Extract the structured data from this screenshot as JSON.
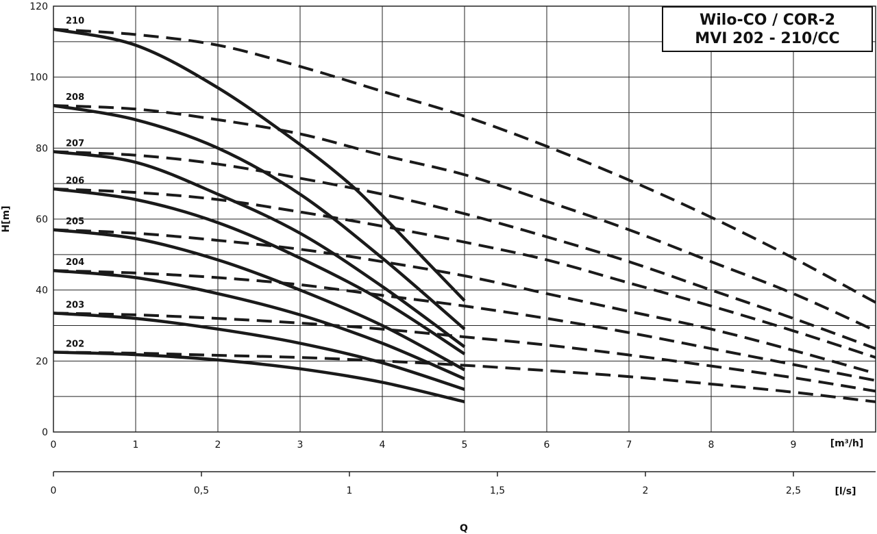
{
  "chart_data": {
    "type": "line",
    "title": [
      "Wilo-CO / COR-2",
      "MVI 202 - 210/CC"
    ],
    "xlabel": "Q",
    "ylabel": "H[m]",
    "x_unit": "[m³/h]",
    "x2_unit": "[l/s]",
    "xlim": [
      0,
      10
    ],
    "ylim": [
      0,
      120
    ],
    "x_ticks": [
      0,
      1,
      2,
      3,
      4,
      5,
      6,
      7,
      8,
      9
    ],
    "x_tick_labels": [
      "0",
      "1",
      "2",
      "3",
      "4",
      "5",
      "6",
      "7",
      "8",
      "9"
    ],
    "y_ticks": [
      0,
      20,
      40,
      60,
      80,
      100,
      120
    ],
    "y_tick_labels": [
      "0",
      "20",
      "40",
      "60",
      "80",
      "100",
      "120"
    ],
    "y_minor_grid": [
      10,
      30,
      50,
      70,
      90,
      110
    ],
    "x2_ticks": [
      0,
      0.5,
      1,
      1.5,
      2,
      2.5
    ],
    "x2_tick_labels": [
      "0",
      "0,5",
      "1",
      "1,5",
      "2",
      "2,5"
    ],
    "grid": true,
    "series_style": {
      "single_pump": "solid",
      "two_pumps": "dashed"
    },
    "series": [
      {
        "name": "210",
        "single_pump": [
          [
            0,
            113.5
          ],
          [
            1,
            109
          ],
          [
            2,
            97
          ],
          [
            3,
            81
          ],
          [
            3.6,
            70
          ],
          [
            4,
            61
          ],
          [
            4.5,
            49
          ],
          [
            5,
            37
          ]
        ],
        "two_pumps": [
          [
            0,
            113.5
          ],
          [
            1,
            112
          ],
          [
            2,
            109
          ],
          [
            3,
            103
          ],
          [
            4,
            96
          ],
          [
            5,
            89
          ],
          [
            6,
            80.5
          ],
          [
            7,
            71
          ],
          [
            8,
            60.5
          ],
          [
            9,
            49
          ],
          [
            10,
            36.5
          ]
        ]
      },
      {
        "name": "208",
        "single_pump": [
          [
            0,
            92
          ],
          [
            1,
            88
          ],
          [
            2,
            80
          ],
          [
            3,
            67
          ],
          [
            4,
            49
          ],
          [
            5,
            29
          ]
        ],
        "two_pumps": [
          [
            0,
            92
          ],
          [
            1,
            91
          ],
          [
            2,
            88
          ],
          [
            3,
            84
          ],
          [
            4,
            78
          ],
          [
            5,
            72.5
          ],
          [
            6,
            65
          ],
          [
            7,
            57
          ],
          [
            8,
            48
          ],
          [
            9,
            39
          ],
          [
            10,
            28.5
          ]
        ]
      },
      {
        "name": "207",
        "single_pump": [
          [
            0,
            79
          ],
          [
            1,
            76
          ],
          [
            2,
            67
          ],
          [
            3,
            56
          ],
          [
            4,
            41
          ],
          [
            5,
            24
          ]
        ],
        "two_pumps": [
          [
            0,
            79
          ],
          [
            1,
            78
          ],
          [
            2,
            75.5
          ],
          [
            3,
            71.5
          ],
          [
            4,
            67
          ],
          [
            5,
            61.5
          ],
          [
            6,
            55
          ],
          [
            7,
            48
          ],
          [
            8,
            40
          ],
          [
            9,
            32
          ],
          [
            10,
            23.5
          ]
        ]
      },
      {
        "name": "206",
        "single_pump": [
          [
            0,
            68.5
          ],
          [
            1,
            65.5
          ],
          [
            2,
            59
          ],
          [
            3,
            49
          ],
          [
            4,
            37
          ],
          [
            5,
            22
          ]
        ],
        "two_pumps": [
          [
            0,
            68.5
          ],
          [
            1,
            67.5
          ],
          [
            2,
            65.5
          ],
          [
            3,
            62
          ],
          [
            4,
            58
          ],
          [
            5,
            53.5
          ],
          [
            6,
            48.5
          ],
          [
            7,
            42
          ],
          [
            8,
            35.5
          ],
          [
            9,
            28.5
          ],
          [
            10,
            21
          ]
        ]
      },
      {
        "name": "205",
        "single_pump": [
          [
            0,
            57
          ],
          [
            1,
            54.5
          ],
          [
            2,
            48.5
          ],
          [
            3,
            40
          ],
          [
            4,
            30
          ],
          [
            5,
            17.5
          ]
        ],
        "two_pumps": [
          [
            0,
            57
          ],
          [
            1,
            56
          ],
          [
            2,
            54
          ],
          [
            3,
            51.5
          ],
          [
            4,
            48
          ],
          [
            5,
            44
          ],
          [
            6,
            39
          ],
          [
            7,
            34
          ],
          [
            8,
            29
          ],
          [
            9,
            23
          ],
          [
            10,
            16.5
          ]
        ]
      },
      {
        "name": "204",
        "single_pump": [
          [
            0,
            45.5
          ],
          [
            1,
            43.5
          ],
          [
            2,
            39
          ],
          [
            3,
            33
          ],
          [
            4,
            25
          ],
          [
            5,
            15
          ]
        ],
        "two_pumps": [
          [
            0,
            45.5
          ],
          [
            1,
            44.8
          ],
          [
            2,
            43.5
          ],
          [
            3,
            41.5
          ],
          [
            4,
            38.5
          ],
          [
            5,
            35.5
          ],
          [
            6,
            32
          ],
          [
            7,
            28
          ],
          [
            8,
            23.5
          ],
          [
            9,
            19
          ],
          [
            10,
            14.5
          ]
        ]
      },
      {
        "name": "203",
        "single_pump": [
          [
            0,
            33.5
          ],
          [
            1,
            32
          ],
          [
            2,
            29
          ],
          [
            3,
            25
          ],
          [
            4,
            19.5
          ],
          [
            5,
            12
          ]
        ],
        "two_pumps": [
          [
            0,
            33.5
          ],
          [
            1,
            33
          ],
          [
            2,
            32
          ],
          [
            3,
            30.7
          ],
          [
            4,
            29
          ],
          [
            5,
            26.8
          ],
          [
            6,
            24.5
          ],
          [
            7,
            21.7
          ],
          [
            8,
            18.6
          ],
          [
            9,
            15.3
          ],
          [
            10,
            11.5
          ]
        ]
      },
      {
        "name": "202",
        "single_pump": [
          [
            0,
            22.5
          ],
          [
            1,
            21.8
          ],
          [
            2,
            20.3
          ],
          [
            3,
            17.8
          ],
          [
            4,
            14
          ],
          [
            5,
            8.5
          ]
        ],
        "two_pumps": [
          [
            0,
            22.5
          ],
          [
            1,
            22.2
          ],
          [
            2,
            21.6
          ],
          [
            3,
            21
          ],
          [
            4,
            20
          ],
          [
            5,
            18.8
          ],
          [
            6,
            17.3
          ],
          [
            7,
            15.6
          ],
          [
            8,
            13.5
          ],
          [
            9,
            11.2
          ],
          [
            10,
            8.5
          ]
        ]
      }
    ]
  },
  "colors": {
    "line": "#1a1a1a",
    "grid": "#222222",
    "background": "#ffffff"
  }
}
